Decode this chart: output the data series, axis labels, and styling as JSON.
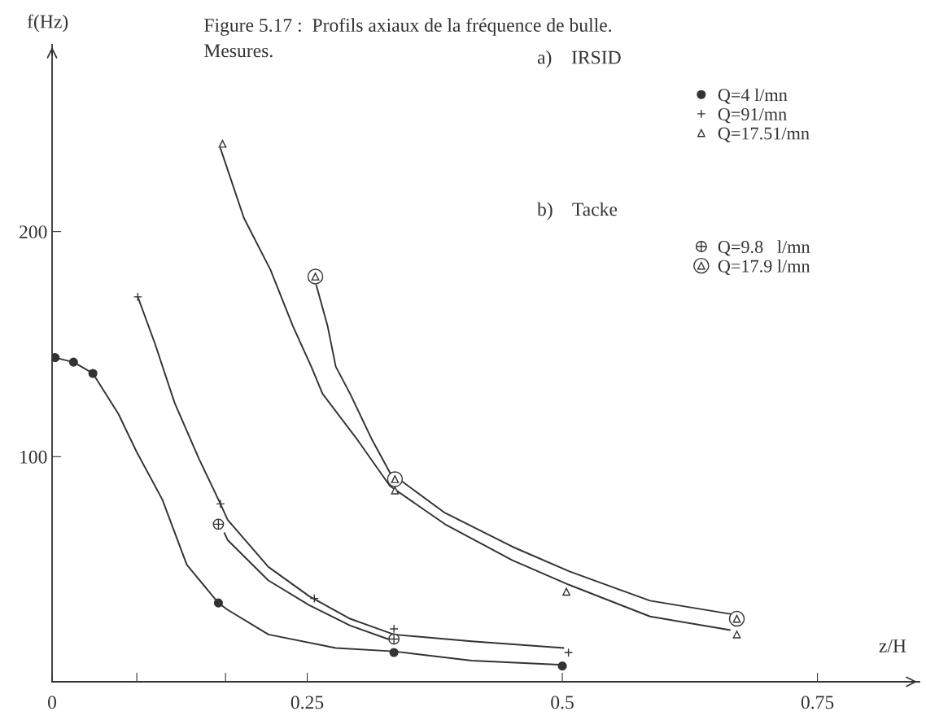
{
  "chart_data": {
    "type": "scatter",
    "title": "Figure 5.17 :  Profils axiaux de la fréquence de bulle.\nMesures.",
    "xlabel": "z/H",
    "ylabel": "f(Hz)",
    "annotations": [
      "a)    IRSID",
      "b)    Tacke"
    ],
    "xlim": [
      0,
      0.85
    ],
    "ylim": [
      0,
      283
    ],
    "xticks": [
      0,
      {
        "value": 0.083,
        "label": null
      },
      {
        "value": 0.17,
        "label": null
      },
      0.25,
      0.5,
      0.75
    ],
    "yticks": [
      100,
      200
    ],
    "grid": false,
    "legend": "top right",
    "line_style": "solid",
    "series": [
      {
        "name": "Q=4 l/mn",
        "marker": "circle",
        "color": "#333333",
        "x": [
          0.003,
          0.021,
          0.04,
          0.163,
          0.335,
          0.5
        ],
        "values": [
          144,
          142,
          137,
          35,
          13,
          7
        ]
      },
      {
        "name": "Q=91/mn",
        "marker": "cross",
        "color": "#333333",
        "x": [
          0.084,
          0.165,
          0.257,
          0.335,
          0.506
        ],
        "values": [
          171,
          79,
          37,
          23.5,
          13
        ]
      },
      {
        "name": "Q=17.51/mn",
        "marker": "triangle",
        "color": "#333333",
        "x": [
          0.167,
          0.336,
          0.504,
          0.671
        ],
        "values": [
          239,
          85,
          40,
          21
        ]
      },
      {
        "name": "Q=9.8   l/mn",
        "marker": "circle_plus",
        "color": "#333333",
        "x": [
          0.163,
          0.335
        ],
        "values": [
          70,
          19
        ]
      },
      {
        "name": "Q=17.9 l/mn",
        "marker": "circle_triangle",
        "color": "#333333",
        "x": [
          0.258,
          0.336,
          0.671
        ],
        "values": [
          180,
          90,
          28
        ]
      },
      {
        "type": "line",
        "marker": "none",
        "color": "#333333",
        "x": [
          0.003,
          0.021,
          0.04,
          0.065,
          0.083,
          0.108,
          0.132,
          0.163,
          0.172,
          0.212,
          0.278,
          0.335,
          0.411,
          0.5
        ],
        "values": [
          144,
          142,
          137,
          119,
          102,
          81,
          52,
          35,
          32,
          21,
          15,
          13.5,
          9.4,
          7.5
        ]
      },
      {
        "type": "line",
        "marker": "none",
        "color": "#333333",
        "x": [
          0.084,
          0.101,
          0.12,
          0.144,
          0.165,
          0.172,
          0.212,
          0.252,
          0.292,
          0.335,
          0.411,
          0.501
        ],
        "values": [
          171,
          150,
          124,
          99,
          79,
          72,
          51,
          38,
          28,
          21,
          18,
          15
        ]
      },
      {
        "type": "line",
        "marker": "none",
        "color": "#333333",
        "x": [
          0.169,
          0.172,
          0.212,
          0.252,
          0.292,
          0.329
        ],
        "values": [
          66,
          63,
          45,
          34,
          25,
          19
        ]
      },
      {
        "type": "line",
        "marker": "none",
        "color": "#333333",
        "x": [
          0.165,
          0.188,
          0.214,
          0.236,
          0.254,
          0.265,
          0.3,
          0.331,
          0.385,
          0.451,
          0.507,
          0.586,
          0.664
        ],
        "values": [
          237,
          206,
          183,
          158,
          140,
          128,
          107,
          87,
          70,
          54,
          43,
          29,
          23
        ]
      },
      {
        "type": "line",
        "marker": "none",
        "color": "#333333",
        "x": [
          0.259,
          0.27,
          0.278,
          0.292,
          0.313,
          0.331,
          0.385,
          0.451,
          0.507,
          0.586,
          0.666
        ],
        "values": [
          176,
          158,
          140,
          128,
          108,
          93,
          75,
          60,
          49,
          36,
          30
        ]
      }
    ]
  }
}
